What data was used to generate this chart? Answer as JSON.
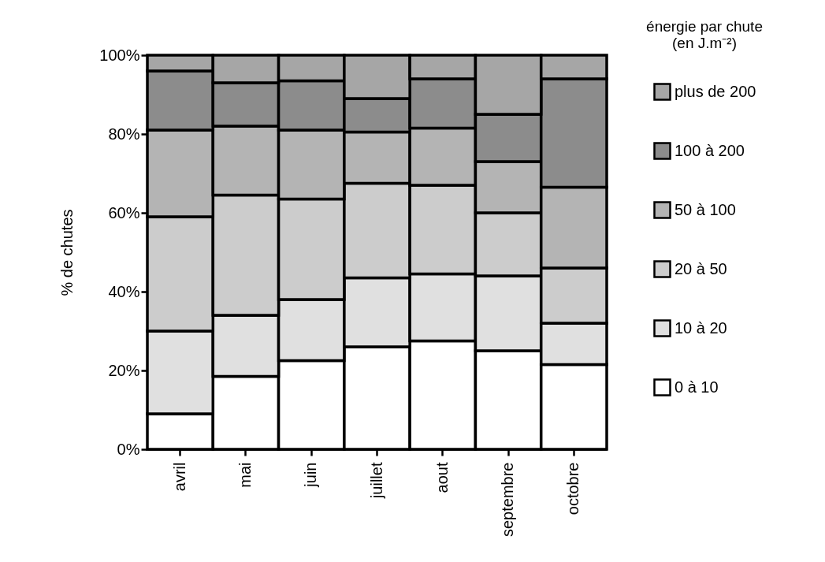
{
  "chart_data": {
    "type": "bar",
    "stacked": true,
    "ylabel": "% de chutes",
    "legend_title": "énergie par chute\n(en J.m⁻²)",
    "legend": "top right",
    "categories": [
      "avril",
      "mai",
      "juin",
      "juillet",
      "aout",
      "septembre",
      "octobre"
    ],
    "ylim": [
      0,
      100
    ],
    "yticks": [
      {
        "value": 0,
        "label": "0%"
      },
      {
        "value": 20,
        "label": "20%"
      },
      {
        "value": 40,
        "label": "40%"
      },
      {
        "value": 60,
        "label": "60%"
      },
      {
        "value": 80,
        "label": "80%"
      },
      {
        "value": 100,
        "label": "100%"
      }
    ],
    "series": [
      {
        "name": "0 à 10",
        "color": "#ffffff",
        "values": [
          9,
          18.5,
          22.5,
          26,
          27.5,
          25,
          21.5
        ]
      },
      {
        "name": "10 à 20",
        "color": "#e0e0e0",
        "values": [
          21,
          15.5,
          15.5,
          17.5,
          17,
          19,
          10.5
        ]
      },
      {
        "name": "20 à 50",
        "color": "#cccccc",
        "values": [
          29,
          30.5,
          25.5,
          24,
          22.5,
          16,
          14
        ]
      },
      {
        "name": "50 à 100",
        "color": "#b4b4b4",
        "values": [
          22,
          17.5,
          17.5,
          13,
          14.5,
          13,
          20.5
        ]
      },
      {
        "name": "100 à 200",
        "color": "#8c8c8c",
        "values": [
          15,
          11,
          12.5,
          8.5,
          12.5,
          12,
          27.5
        ]
      },
      {
        "name": "plus de 200",
        "color": "#a6a6a6",
        "values": [
          4,
          7,
          6.5,
          11,
          6,
          15,
          6
        ]
      }
    ]
  }
}
